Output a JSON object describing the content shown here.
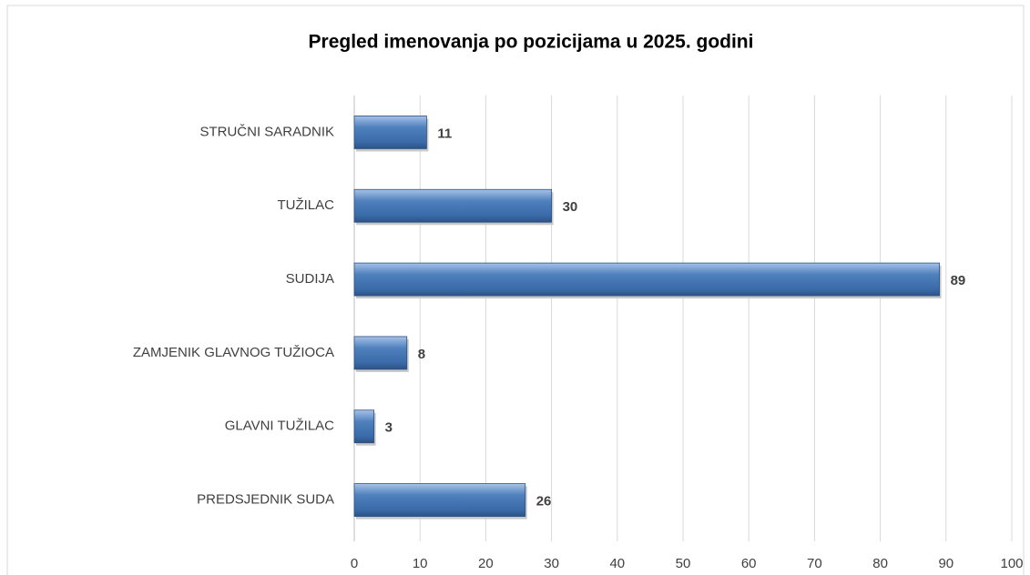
{
  "chart_data": {
    "type": "bar",
    "orientation": "horizontal",
    "title": "Pregled imenovanja po pozicijama u 2025. godini",
    "categories": [
      "STRUČNI SARADNIK",
      "TUŽILAC",
      "SUDIJA",
      "ZAMJENIK GLAVNOG TUŽIOCA",
      "GLAVNI TUŽILAC",
      "PREDSJEDNIK SUDA"
    ],
    "values": [
      11,
      30,
      89,
      8,
      3,
      26
    ],
    "color": "#4f81bd",
    "xlim": [
      0,
      100
    ],
    "xticks": [
      0,
      10,
      20,
      30,
      40,
      50,
      60,
      70,
      80,
      90,
      100
    ],
    "grid": true
  }
}
